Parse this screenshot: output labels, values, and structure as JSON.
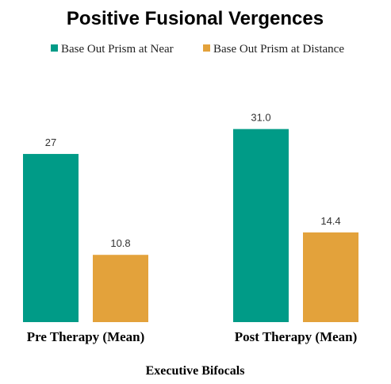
{
  "chart_data": {
    "type": "bar",
    "title": "Positive Fusional Vergences",
    "xlabel": "Executive Bifocals",
    "ylabel": "",
    "categories": [
      "Pre Therapy (Mean)",
      "Post Therapy (Mean)"
    ],
    "series": [
      {
        "name": "Base Out Prism at Near",
        "values": [
          27,
          31.0
        ],
        "labels": [
          "27",
          "31.0"
        ],
        "color": "#009B87"
      },
      {
        "name": "Base Out Prism at Distance",
        "values": [
          10.8,
          14.4
        ],
        "labels": [
          "10.8",
          "14.4"
        ],
        "color": "#E3A23B"
      }
    ],
    "ylim": [
      0,
      35
    ],
    "grid": false,
    "legend_position": "top"
  }
}
